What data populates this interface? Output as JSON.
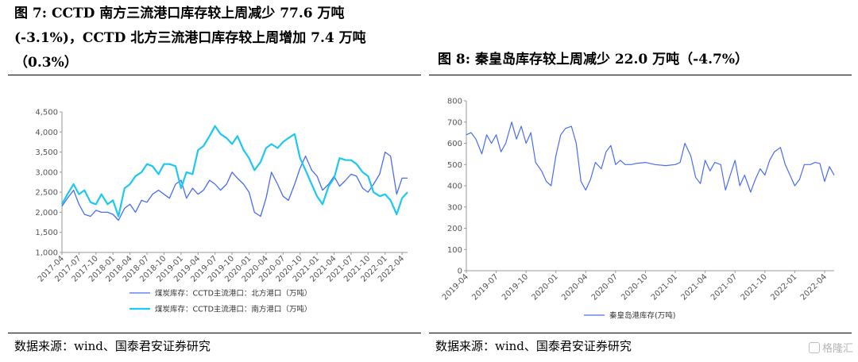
{
  "figure_left": {
    "title": "图 7: CCTD 南方三流港口库存较上周减少 77.6 万吨(-3.1%)，CCTD 北方三流港口库存较上周增加 7.4 万吨（0.3%）",
    "source": "数据来源：wind、国泰君安证券研究"
  },
  "figure_right": {
    "title": "图 8: 秦皇岛库存较上周减少 22.0 万吨（-4.7%）",
    "source": "数据来源：wind、国泰君安证券研究"
  },
  "watermark": {
    "text": "格隆汇"
  },
  "colors": {
    "north": "#4a6cf7",
    "south": "#1ec8f0",
    "qhd": "#4a6cf7",
    "axis": "#999999"
  },
  "chart_data": [
    {
      "type": "line",
      "ylim": [
        1000,
        4500
      ],
      "yticks": [
        "1,000",
        "1,500",
        "2,000",
        "2,500",
        "3,000",
        "3,500",
        "4,000",
        "4,500"
      ],
      "xlim": [
        2017.25,
        2022.33
      ],
      "xticks": [
        "2017-04",
        "2017-07",
        "2017-10",
        "2018-01",
        "2018-04",
        "2018-07",
        "2018-10",
        "2019-01",
        "2019-04",
        "2019-07",
        "2019-10",
        "2020-01",
        "2020-04",
        "2020-07",
        "2020-10",
        "2021-01",
        "2021-04",
        "2021-07",
        "2021-10",
        "2022-01",
        "2022-04"
      ],
      "legend_position": "bottom",
      "series": [
        {
          "name": "煤炭库存：CCTD主流港口：北方港口（万吨）",
          "color": "#4a6cf7",
          "x": [
            2017.25,
            2017.33,
            2017.42,
            2017.5,
            2017.58,
            2017.67,
            2017.75,
            2017.83,
            2017.92,
            2018.0,
            2018.08,
            2018.17,
            2018.25,
            2018.33,
            2018.42,
            2018.5,
            2018.58,
            2018.67,
            2018.75,
            2018.83,
            2018.92,
            2019.0,
            2019.08,
            2019.17,
            2019.25,
            2019.33,
            2019.42,
            2019.5,
            2019.58,
            2019.67,
            2019.75,
            2019.83,
            2019.92,
            2020.0,
            2020.08,
            2020.17,
            2020.25,
            2020.33,
            2020.42,
            2020.5,
            2020.58,
            2020.67,
            2020.75,
            2020.83,
            2020.92,
            2021.0,
            2021.08,
            2021.17,
            2021.25,
            2021.33,
            2021.42,
            2021.5,
            2021.58,
            2021.67,
            2021.75,
            2021.83,
            2021.92,
            2022.0,
            2022.08,
            2022.17,
            2022.25,
            2022.33
          ],
          "y": [
            2150,
            2350,
            2550,
            2200,
            1950,
            1900,
            2050,
            2000,
            2000,
            1950,
            1800,
            2100,
            2200,
            2000,
            2300,
            2250,
            2450,
            2550,
            2450,
            2350,
            2700,
            2800,
            2350,
            2600,
            2450,
            2550,
            2800,
            2700,
            2550,
            2700,
            3000,
            2850,
            2700,
            2500,
            2000,
            1900,
            2350,
            3000,
            2700,
            2400,
            2300,
            2700,
            3100,
            3400,
            3050,
            2900,
            2550,
            2700,
            2900,
            2650,
            2800,
            2950,
            2900,
            2600,
            2500,
            2700,
            2950,
            3500,
            3400,
            2450,
            2850,
            2850
          ]
        },
        {
          "name": "煤炭库存：CCTD主流港口：南方港口（万吨）",
          "color": "#1ec8f0",
          "x": [
            2017.25,
            2017.33,
            2017.42,
            2017.5,
            2017.58,
            2017.67,
            2017.75,
            2017.83,
            2017.92,
            2018.0,
            2018.08,
            2018.17,
            2018.25,
            2018.33,
            2018.42,
            2018.5,
            2018.58,
            2018.67,
            2018.75,
            2018.83,
            2018.92,
            2019.0,
            2019.08,
            2019.17,
            2019.25,
            2019.33,
            2019.42,
            2019.5,
            2019.58,
            2019.67,
            2019.75,
            2019.83,
            2019.92,
            2020.0,
            2020.08,
            2020.17,
            2020.25,
            2020.33,
            2020.42,
            2020.5,
            2020.58,
            2020.67,
            2020.75,
            2020.83,
            2020.92,
            2021.0,
            2021.08,
            2021.17,
            2021.25,
            2021.33,
            2021.42,
            2021.5,
            2021.58,
            2021.67,
            2021.75,
            2021.83,
            2021.92,
            2022.0,
            2022.08,
            2022.17,
            2022.25,
            2022.33
          ],
          "y": [
            2200,
            2450,
            2700,
            2450,
            2550,
            2250,
            2200,
            2450,
            2200,
            2300,
            1900,
            2600,
            2700,
            2900,
            3000,
            3200,
            3150,
            2950,
            3200,
            3200,
            3150,
            2600,
            3000,
            2950,
            3550,
            3650,
            3900,
            4150,
            3950,
            3850,
            3700,
            3900,
            3550,
            3350,
            3050,
            3250,
            3600,
            3700,
            3600,
            3750,
            3850,
            3950,
            3350,
            3050,
            2700,
            2400,
            2200,
            2650,
            2850,
            3350,
            3300,
            3300,
            3200,
            3000,
            2900,
            2500,
            2400,
            2450,
            2300,
            1950,
            2350,
            2500
          ]
        }
      ]
    },
    {
      "type": "line",
      "ylim": [
        0,
        800
      ],
      "yticks": [
        "0",
        "100",
        "200",
        "300",
        "400",
        "500",
        "600",
        "700",
        "800"
      ],
      "xlim": [
        2019.25,
        2022.33
      ],
      "xticks": [
        "2019-04",
        "2019-07",
        "2019-10",
        "2020-01",
        "2020-04",
        "2020-07",
        "2020-10",
        "2021-01",
        "2021-04",
        "2021-07",
        "2021-10",
        "2022-01",
        "2022-04"
      ],
      "legend_position": "bottom",
      "series": [
        {
          "name": "秦皇岛港库存(万吨)",
          "color": "#4a6cf7",
          "x": [
            2019.25,
            2019.29,
            2019.33,
            2019.38,
            2019.42,
            2019.46,
            2019.5,
            2019.54,
            2019.58,
            2019.63,
            2019.67,
            2019.71,
            2019.75,
            2019.79,
            2019.83,
            2019.88,
            2019.92,
            2019.96,
            2020.0,
            2020.04,
            2020.08,
            2020.13,
            2020.17,
            2020.21,
            2020.25,
            2020.29,
            2020.33,
            2020.38,
            2020.42,
            2020.46,
            2020.5,
            2020.54,
            2020.58,
            2020.63,
            2020.67,
            2020.75,
            2020.83,
            2020.92,
            2021.0,
            2021.04,
            2021.08,
            2021.13,
            2021.17,
            2021.21,
            2021.25,
            2021.29,
            2021.33,
            2021.38,
            2021.42,
            2021.46,
            2021.5,
            2021.54,
            2021.58,
            2021.63,
            2021.67,
            2021.71,
            2021.75,
            2021.79,
            2021.83,
            2021.88,
            2021.92,
            2021.96,
            2022.0,
            2022.04,
            2022.08,
            2022.13,
            2022.17,
            2022.21,
            2022.25,
            2022.29,
            2022.33
          ],
          "y": [
            640,
            650,
            620,
            550,
            640,
            600,
            640,
            560,
            600,
            700,
            620,
            680,
            600,
            650,
            510,
            470,
            420,
            400,
            540,
            640,
            670,
            680,
            600,
            420,
            380,
            430,
            510,
            480,
            560,
            590,
            500,
            520,
            500,
            500,
            505,
            510,
            500,
            495,
            500,
            510,
            600,
            540,
            440,
            410,
            520,
            470,
            510,
            500,
            380,
            450,
            520,
            400,
            450,
            370,
            430,
            480,
            450,
            520,
            560,
            580,
            500,
            450,
            400,
            430,
            500,
            500,
            510,
            505,
            420,
            490,
            450
          ]
        }
      ]
    }
  ]
}
